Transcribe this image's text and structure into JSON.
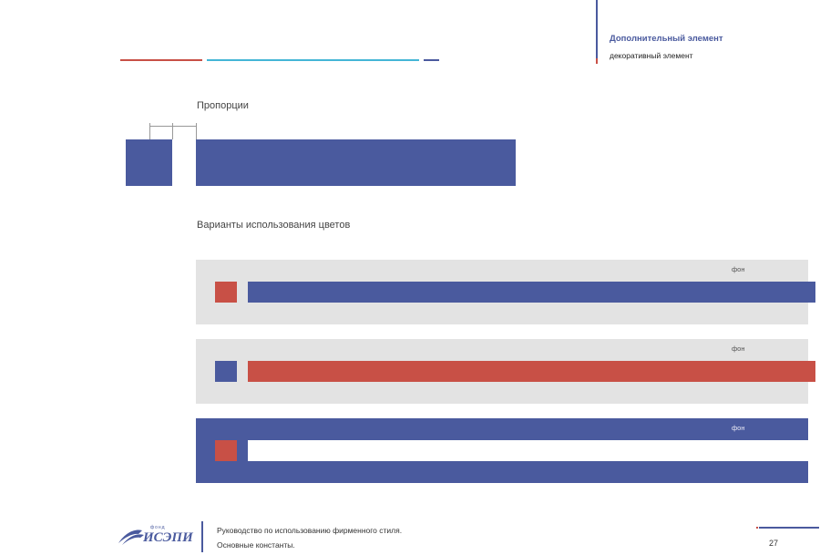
{
  "header": {
    "title": "Дополнительный элемент",
    "subtitle": "декоративный элемент"
  },
  "sections": {
    "proportions_title": "Пропорции",
    "variants_title": "Варианты использования цветов"
  },
  "variants": [
    {
      "background_label": "фон",
      "background_color": "#e3e3e3",
      "square_color": "#c85046",
      "bar_color": "#4a5a9e"
    },
    {
      "background_label": "фон",
      "background_color": "#e3e3e3",
      "square_color": "#4a5a9e",
      "bar_color": "#c85046"
    },
    {
      "background_label": "фон",
      "background_color": "#4a5a9e",
      "square_color": "#c85046",
      "bar_color": "#ffffff"
    }
  ],
  "footer": {
    "logo_small": "фонд",
    "logo_main": "ИСЭПИ",
    "line1": "Руководство по использованию фирменного стиля.",
    "line2": "Основные константы.",
    "page_number": "27"
  },
  "colors": {
    "blue": "#4a5a9e",
    "red": "#c85046",
    "cyan": "#44b6d6",
    "grey": "#e3e3e3"
  }
}
